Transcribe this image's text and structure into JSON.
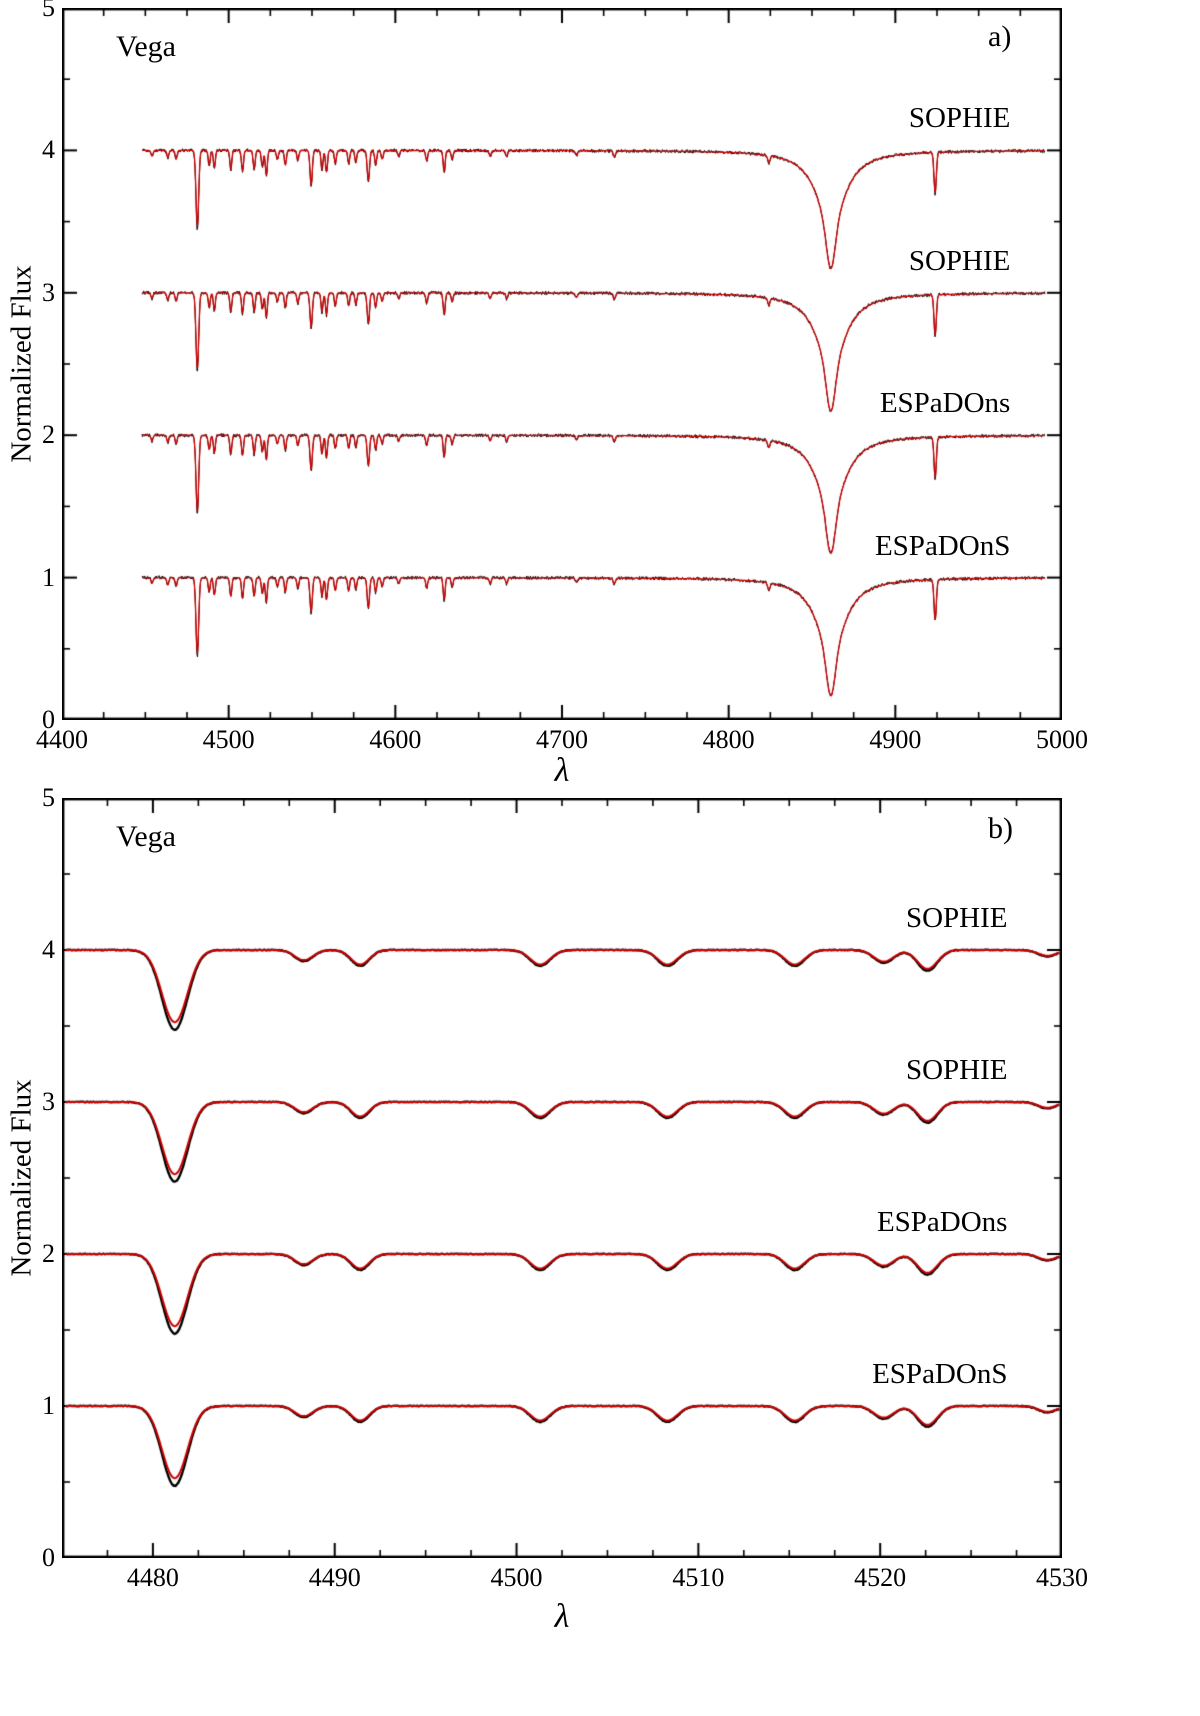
{
  "chart_data": {
    "type": "line",
    "description": "Comparison of observed (black) and model (red) normalized spectra of Vega from SOPHIE and ESPaDOnS spectrographs; four spectra vertically offset by 1 in normalized flux. Panel a) shows the H-beta region 4400-5000 A, panel b) zooms on the Mg II 4481 region 4475-4530 A.",
    "colors": {
      "observed": "#000000",
      "model": "#cc0000"
    },
    "panels": [
      {
        "corner_label": "a)",
        "star": "Vega",
        "xlabel": "λ",
        "ylabel": "Normalized Flux",
        "x_range": [
          4400,
          5000
        ],
        "y_range": [
          0,
          5
        ],
        "x_major_ticks": [
          4400,
          4500,
          4600,
          4700,
          4800,
          4900,
          5000
        ],
        "x_minor_step": 25,
        "y_major_ticks": [
          0,
          1,
          2,
          3,
          4,
          5
        ],
        "y_minor_step": 0.5,
        "grid": false,
        "data_x_range": [
          4448,
          4990
        ],
        "sample_step": 0.3,
        "noise": 0.012,
        "black_line_width": 1,
        "red_line_width": 1.3,
        "black_depth_scale": 1.06,
        "red_depth_scale": 1.0,
        "label_anchor_wl": 4969,
        "spectra": [
          {
            "label": "SOPHIE",
            "offset": 4
          },
          {
            "label": "SOPHIE",
            "offset": 3
          },
          {
            "label": "ESPaDOns",
            "offset": 2
          },
          {
            "label": "ESPaDOnS",
            "offset": 1
          }
        ],
        "lines": [
          {
            "wl": 4454.0,
            "d": 0.04,
            "w": 0.6
          },
          {
            "wl": 4463.5,
            "d": 0.05,
            "w": 0.6
          },
          {
            "wl": 4468.5,
            "d": 0.06,
            "w": 0.6
          },
          {
            "wl": 4481.2,
            "d": 0.53,
            "w": 0.8
          },
          {
            "wl": 4488.3,
            "d": 0.1,
            "w": 0.6
          },
          {
            "wl": 4491.4,
            "d": 0.12,
            "w": 0.6
          },
          {
            "wl": 4501.3,
            "d": 0.13,
            "w": 0.6
          },
          {
            "wl": 4508.3,
            "d": 0.14,
            "w": 0.6
          },
          {
            "wl": 4515.3,
            "d": 0.13,
            "w": 0.6
          },
          {
            "wl": 4520.2,
            "d": 0.11,
            "w": 0.6
          },
          {
            "wl": 4522.6,
            "d": 0.17,
            "w": 0.6
          },
          {
            "wl": 4529.2,
            "d": 0.06,
            "w": 0.6
          },
          {
            "wl": 4534.0,
            "d": 0.1,
            "w": 0.6
          },
          {
            "wl": 4541.5,
            "d": 0.07,
            "w": 0.6
          },
          {
            "wl": 4549.5,
            "d": 0.24,
            "w": 0.7
          },
          {
            "wl": 4556.0,
            "d": 0.13,
            "w": 0.6
          },
          {
            "wl": 4558.7,
            "d": 0.15,
            "w": 0.6
          },
          {
            "wl": 4564.0,
            "d": 0.09,
            "w": 0.6
          },
          {
            "wl": 4572.0,
            "d": 0.09,
            "w": 0.6
          },
          {
            "wl": 4576.3,
            "d": 0.08,
            "w": 0.6
          },
          {
            "wl": 4583.8,
            "d": 0.21,
            "w": 0.7
          },
          {
            "wl": 4588.2,
            "d": 0.1,
            "w": 0.6
          },
          {
            "wl": 4592.1,
            "d": 0.06,
            "w": 0.6
          },
          {
            "wl": 4602.0,
            "d": 0.04,
            "w": 0.6
          },
          {
            "wl": 4618.8,
            "d": 0.07,
            "w": 0.6
          },
          {
            "wl": 4629.3,
            "d": 0.15,
            "w": 0.6
          },
          {
            "wl": 4634.1,
            "d": 0.06,
            "w": 0.6
          },
          {
            "wl": 4656.9,
            "d": 0.04,
            "w": 0.6
          },
          {
            "wl": 4666.8,
            "d": 0.04,
            "w": 0.6
          },
          {
            "wl": 4708.7,
            "d": 0.03,
            "w": 0.7
          },
          {
            "wl": 4731.4,
            "d": 0.04,
            "w": 0.7
          },
          {
            "wl": 4824.1,
            "d": 0.05,
            "w": 0.7
          },
          {
            "wl": 4861.3,
            "d": 0.28,
            "w": 2.5,
            "ld": 0.55,
            "lw": 10
          },
          {
            "wl": 4923.9,
            "d": 0.28,
            "w": 0.7
          }
        ]
      },
      {
        "corner_label": "b)",
        "star": "Vega",
        "xlabel": "λ",
        "ylabel": "Normalized Flux",
        "x_range": [
          4475,
          4530
        ],
        "y_range": [
          0,
          5
        ],
        "x_major_ticks": [
          4480,
          4490,
          4500,
          4510,
          4520,
          4530
        ],
        "x_minor_step": 2.5,
        "y_major_ticks": [
          0,
          1,
          2,
          3,
          4,
          5
        ],
        "y_minor_step": 0.5,
        "grid": false,
        "data_x_range": [
          4475.2,
          4529.9
        ],
        "sample_step": 0.05,
        "noise": 0.0025,
        "black_line_width": 2.4,
        "red_line_width": 2.0,
        "black_depth_scale": 1.05,
        "red_depth_scale": 0.95,
        "label_anchor_wl": 4527,
        "spectra": [
          {
            "label": "SOPHIE",
            "offset": 4
          },
          {
            "label": "SOPHIE",
            "offset": 3
          },
          {
            "label": "ESPaDOns",
            "offset": 2
          },
          {
            "label": "ESPaDOnS",
            "offset": 1
          }
        ],
        "lines": [
          {
            "wl": 4481.2,
            "d": 0.5,
            "w": 0.7
          },
          {
            "wl": 4488.3,
            "d": 0.07,
            "w": 0.5
          },
          {
            "wl": 4491.4,
            "d": 0.1,
            "w": 0.5
          },
          {
            "wl": 4501.3,
            "d": 0.1,
            "w": 0.55
          },
          {
            "wl": 4508.3,
            "d": 0.1,
            "w": 0.55
          },
          {
            "wl": 4515.3,
            "d": 0.1,
            "w": 0.55
          },
          {
            "wl": 4520.2,
            "d": 0.08,
            "w": 0.55
          },
          {
            "wl": 4522.6,
            "d": 0.13,
            "w": 0.55
          },
          {
            "wl": 4529.2,
            "d": 0.04,
            "w": 0.5
          }
        ]
      }
    ]
  }
}
